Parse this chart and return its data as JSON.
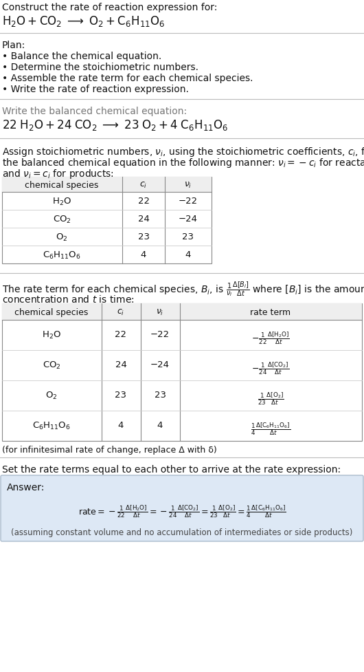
{
  "bg_color": "#ffffff",
  "title_line1": "Construct the rate of reaction expression for:",
  "plan_header": "Plan:",
  "plan_bullets": [
    "• Balance the chemical equation.",
    "• Determine the stoichiometric numbers.",
    "• Assemble the rate term for each chemical species.",
    "• Write the rate of reaction expression."
  ],
  "balanced_header": "Write the balanced chemical equation:",
  "stoich_intro_line1": "Assign stoichiometric numbers, $\\nu_i$, using the stoichiometric coefficients, $c_i$, from",
  "stoich_intro_line2": "the balanced chemical equation in the following manner: $\\nu_i = -c_i$ for reactants",
  "stoich_intro_line3": "and $\\nu_i = c_i$ for products:",
  "table1_headers": [
    "chemical species",
    "$c_i$",
    "$\\nu_i$"
  ],
  "table1_rows": [
    [
      "$\\mathrm{H_2O}$",
      "22",
      "−22"
    ],
    [
      "$\\mathrm{CO_2}$",
      "24",
      "−24"
    ],
    [
      "$\\mathrm{O_2}$",
      "23",
      "23"
    ],
    [
      "$\\mathrm{C_6H_{11}O_6}$",
      "4",
      "4"
    ]
  ],
  "rate_intro_line1": "The rate term for each chemical species, $B_i$, is $\\frac{1}{\\nu_i}\\frac{\\Delta[B_i]}{\\Delta t}$ where $[B_i]$ is the amount",
  "rate_intro_line2": "concentration and $t$ is time:",
  "table2_headers": [
    "chemical species",
    "$c_i$",
    "$\\nu_i$",
    "rate term"
  ],
  "table2_rows": [
    [
      "$\\mathrm{H_2O}$",
      "22",
      "−22",
      "$-\\frac{1}{22}\\frac{\\Delta[\\mathrm{H_2O}]}{\\Delta t}$"
    ],
    [
      "$\\mathrm{CO_2}$",
      "24",
      "−24",
      "$-\\frac{1}{24}\\frac{\\Delta[\\mathrm{CO_2}]}{\\Delta t}$"
    ],
    [
      "$\\mathrm{O_2}$",
      "23",
      "23",
      "$\\frac{1}{23}\\frac{\\Delta[\\mathrm{O_2}]}{\\Delta t}$"
    ],
    [
      "$\\mathrm{C_6H_{11}O_6}$",
      "4",
      "4",
      "$\\frac{1}{4}\\frac{\\Delta[\\mathrm{C_6H_{11}O_6}]}{\\Delta t}$"
    ]
  ],
  "infin_note": "(for infinitesimal rate of change, replace Δ with δ)",
  "set_equal_text": "Set the rate terms equal to each other to arrive at the rate expression:",
  "answer_label": "Answer:",
  "answer_box_color": "#dde8f5",
  "answer_box_border": "#aabbcc",
  "answer_note": "(assuming constant volume and no accumulation of intermediates or side products)",
  "section_line_color": "#bbbbbb",
  "table_border_color": "#888888",
  "table_header_bg": "#eeeeee",
  "row_sep_color": "#cccccc"
}
